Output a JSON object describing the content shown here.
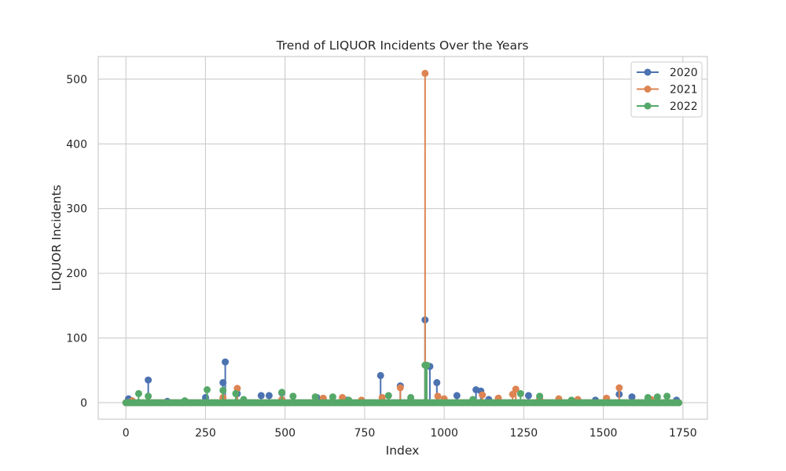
{
  "chart_data": {
    "type": "line",
    "title": "Trend of LIQUOR Incidents Over the Years",
    "xlabel": "Index",
    "ylabel": "LIQUOR Incidents",
    "xlim": [
      -87,
      1827
    ],
    "ylim": [
      -25.5,
      535
    ],
    "xticks": [
      0,
      250,
      500,
      750,
      1000,
      1250,
      1500,
      1750
    ],
    "yticks": [
      0,
      100,
      200,
      300,
      400,
      500
    ],
    "grid": true,
    "legend_position": "top-right",
    "colors": {
      "2020": "#4c72b0",
      "2021": "#dd8452",
      "2022": "#55a868",
      "grid": "#cccccc",
      "spine": "#cccccc",
      "text": "#262626"
    },
    "series": [
      {
        "name": "2020",
        "color": "#4c72b0",
        "peaks": [
          [
            8,
            6
          ],
          [
            70,
            35
          ],
          [
            130,
            2
          ],
          [
            250,
            8
          ],
          [
            305,
            31
          ],
          [
            312,
            63
          ],
          [
            350,
            14
          ],
          [
            425,
            11
          ],
          [
            450,
            11
          ],
          [
            490,
            15
          ],
          [
            600,
            8
          ],
          [
            695,
            4
          ],
          [
            800,
            42
          ],
          [
            862,
            26
          ],
          [
            940,
            128
          ],
          [
            955,
            56
          ],
          [
            977,
            31
          ],
          [
            1000,
            4
          ],
          [
            1040,
            11
          ],
          [
            1100,
            20
          ],
          [
            1115,
            18
          ],
          [
            1140,
            5
          ],
          [
            1265,
            11
          ],
          [
            1475,
            4
          ],
          [
            1550,
            13
          ],
          [
            1590,
            9
          ],
          [
            1730,
            4
          ]
        ],
        "baseline": 0,
        "x_range": [
          0,
          1745
        ]
      },
      {
        "name": "2021",
        "color": "#dd8452",
        "peaks": [
          [
            20,
            3
          ],
          [
            305,
            8
          ],
          [
            350,
            22
          ],
          [
            490,
            5
          ],
          [
            620,
            7
          ],
          [
            680,
            8
          ],
          [
            740,
            4
          ],
          [
            805,
            8
          ],
          [
            862,
            23
          ],
          [
            940,
            509
          ],
          [
            980,
            10
          ],
          [
            1000,
            6
          ],
          [
            1120,
            12
          ],
          [
            1170,
            7
          ],
          [
            1215,
            13
          ],
          [
            1225,
            21
          ],
          [
            1300,
            6
          ],
          [
            1360,
            6
          ],
          [
            1420,
            5
          ],
          [
            1510,
            7
          ],
          [
            1550,
            23
          ],
          [
            1650,
            5
          ]
        ],
        "baseline": 0,
        "x_range": [
          0,
          1745
        ]
      },
      {
        "name": "2022",
        "color": "#55a868",
        "peaks": [
          [
            40,
            14
          ],
          [
            70,
            10
          ],
          [
            185,
            3
          ],
          [
            255,
            20
          ],
          [
            305,
            19
          ],
          [
            345,
            14
          ],
          [
            370,
            5
          ],
          [
            490,
            16
          ],
          [
            525,
            10
          ],
          [
            595,
            9
          ],
          [
            650,
            9
          ],
          [
            700,
            4
          ],
          [
            825,
            11
          ],
          [
            895,
            8
          ],
          [
            940,
            58
          ],
          [
            945,
            58
          ],
          [
            1090,
            5
          ],
          [
            1240,
            14
          ],
          [
            1300,
            10
          ],
          [
            1400,
            4
          ],
          [
            1640,
            8
          ],
          [
            1670,
            9
          ],
          [
            1700,
            10
          ]
        ],
        "baseline": 0,
        "x_range": [
          0,
          1745
        ]
      }
    ]
  }
}
